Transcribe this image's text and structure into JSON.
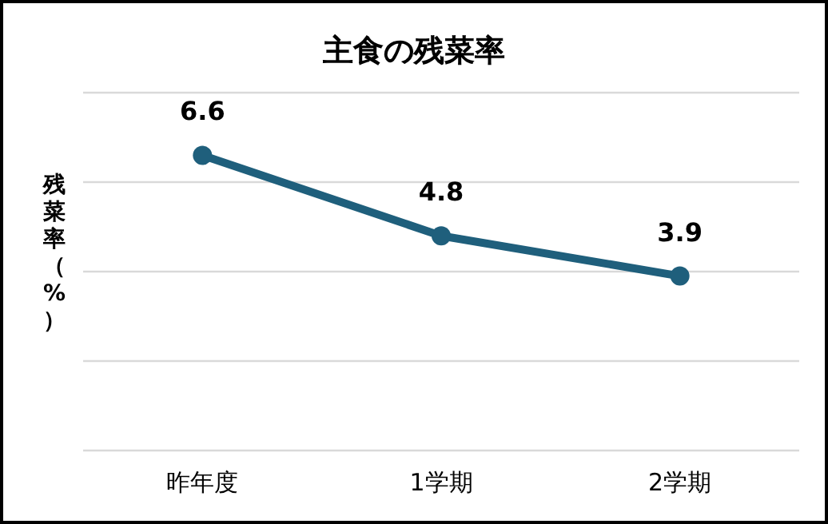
{
  "chart_data": {
    "type": "line",
    "title": "主食の残菜率",
    "ylabel": "残菜率（%）",
    "categories": [
      "昨年度",
      "1学期",
      "2学期"
    ],
    "series": [
      {
        "color": "#1f5f7c",
        "values": [
          6.6,
          4.8,
          3.9
        ]
      }
    ],
    "ylim": [
      0,
      8
    ],
    "yticks": [
      {
        "value": 0,
        "label": null
      },
      {
        "value": 2,
        "label": null
      },
      {
        "value": 4,
        "label": null
      },
      {
        "value": 6,
        "label": null
      },
      {
        "value": 8,
        "label": null
      }
    ],
    "tick_labels": "x",
    "grid": "y",
    "marker": "circle",
    "line_style": "solid",
    "data_labels": true
  }
}
